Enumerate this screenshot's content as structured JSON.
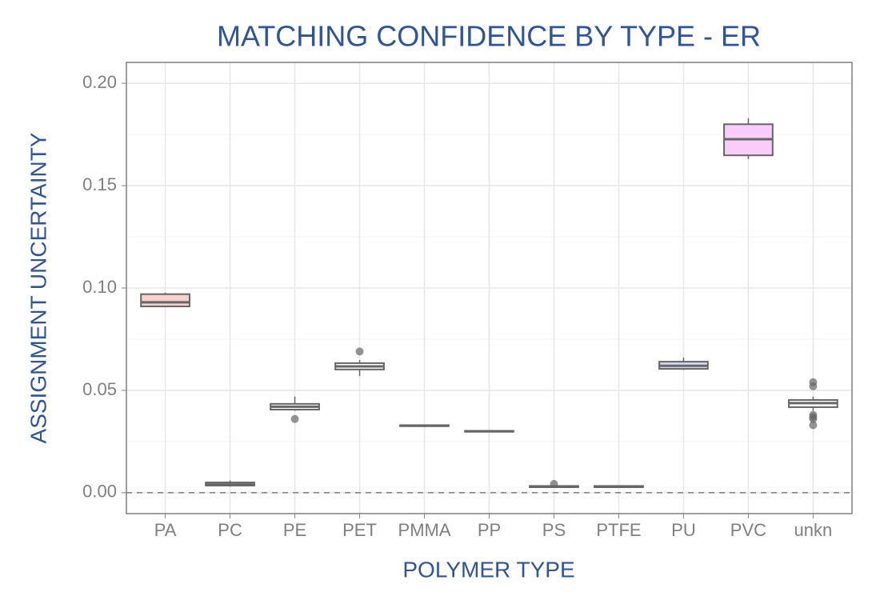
{
  "chart_data": {
    "type": "box",
    "title": "MATCHING CONFIDENCE BY TYPE - ER",
    "x_label": "POLYMER TYPE",
    "y_label": "ASSIGNMENT UNCERTAINTY",
    "categories": [
      "PA",
      "PC",
      "PE",
      "PET",
      "PMMA",
      "PP",
      "PS",
      "PTFE",
      "PU",
      "PVC",
      "unkn"
    ],
    "colors": [
      "#f8d0d0",
      "#ffffff",
      "#ffffff",
      "#ffffff",
      "#ffffff",
      "#ffffff",
      "#ffffff",
      "#ffffff",
      "#d6d6f5",
      "#f9ccf9",
      "#ffffff"
    ],
    "min": [
      0.0906,
      0.003,
      0.04,
      0.057,
      0.032,
      0.0295,
      0.0025,
      0.0025,
      0.06,
      0.163,
      0.04
    ],
    "q1": [
      0.091,
      0.0035,
      0.0406,
      0.0602,
      0.0325,
      0.0298,
      0.0027,
      0.0027,
      0.0605,
      0.1648,
      0.0418
    ],
    "median": [
      0.093,
      0.004,
      0.042,
      0.0617,
      0.0328,
      0.03,
      0.003,
      0.003,
      0.062,
      0.1727,
      0.0438
    ],
    "q3": [
      0.097,
      0.005,
      0.0434,
      0.0633,
      0.033,
      0.0302,
      0.0033,
      0.0033,
      0.064,
      0.18,
      0.0453
    ],
    "max": [
      0.0977,
      0.006,
      0.047,
      0.0648,
      0.0333,
      0.0305,
      0.0036,
      0.0035,
      0.066,
      0.183,
      0.047
    ],
    "outliers": [
      [],
      [],
      [
        0.036
      ],
      [
        0.069
      ],
      [],
      [],
      [
        0.0043
      ],
      [],
      [],
      [],
      [
        0.054,
        0.052,
        0.038,
        0.037,
        0.036,
        0.033
      ]
    ],
    "reference_line": 0,
    "ylim": [
      -0.0102,
      0.2102
    ],
    "yticks": [
      {
        "value": 0,
        "label": "0.00"
      },
      {
        "value": 0.05,
        "label": "0.05"
      },
      {
        "value": 0.1,
        "label": "0.10"
      },
      {
        "value": 0.15,
        "label": "0.15"
      },
      {
        "value": 0.2,
        "label": "0.20"
      }
    ],
    "grid": true
  }
}
